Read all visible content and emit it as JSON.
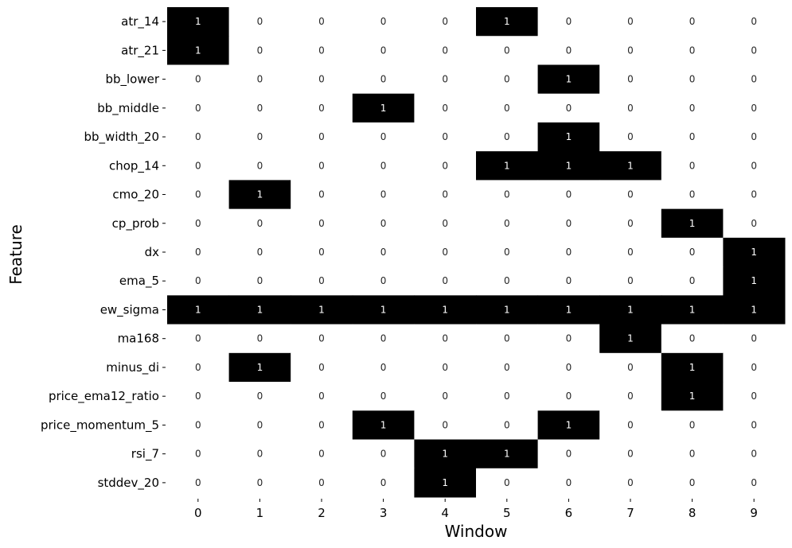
{
  "chart_data": {
    "type": "heatmap",
    "title": "",
    "xlabel": "Window",
    "ylabel": "Feature",
    "x_categories": [
      "0",
      "1",
      "2",
      "3",
      "4",
      "5",
      "6",
      "7",
      "8",
      "9"
    ],
    "y_categories": [
      "atr_14",
      "atr_21",
      "bb_lower",
      "bb_middle",
      "bb_width_20",
      "chop_14",
      "cmo_20",
      "cp_prob",
      "dx",
      "ema_5",
      "ew_sigma",
      "ma168",
      "minus_di",
      "price_ema12_ratio",
      "price_momentum_5",
      "rsi_7",
      "stddev_20"
    ],
    "values": [
      [
        1,
        0,
        0,
        0,
        0,
        1,
        0,
        0,
        0,
        0
      ],
      [
        1,
        0,
        0,
        0,
        0,
        0,
        0,
        0,
        0,
        0
      ],
      [
        0,
        0,
        0,
        0,
        0,
        0,
        1,
        0,
        0,
        0
      ],
      [
        0,
        0,
        0,
        1,
        0,
        0,
        0,
        0,
        0,
        0
      ],
      [
        0,
        0,
        0,
        0,
        0,
        0,
        1,
        0,
        0,
        0
      ],
      [
        0,
        0,
        0,
        0,
        0,
        1,
        1,
        1,
        0,
        0
      ],
      [
        0,
        1,
        0,
        0,
        0,
        0,
        0,
        0,
        0,
        0
      ],
      [
        0,
        0,
        0,
        0,
        0,
        0,
        0,
        0,
        1,
        0
      ],
      [
        0,
        0,
        0,
        0,
        0,
        0,
        0,
        0,
        0,
        1
      ],
      [
        0,
        0,
        0,
        0,
        0,
        0,
        0,
        0,
        0,
        1
      ],
      [
        1,
        1,
        1,
        1,
        1,
        1,
        1,
        1,
        1,
        1
      ],
      [
        0,
        0,
        0,
        0,
        0,
        0,
        0,
        1,
        0,
        0
      ],
      [
        0,
        1,
        0,
        0,
        0,
        0,
        0,
        0,
        1,
        0
      ],
      [
        0,
        0,
        0,
        0,
        0,
        0,
        0,
        0,
        1,
        0
      ],
      [
        0,
        0,
        0,
        1,
        0,
        0,
        1,
        0,
        0,
        0
      ],
      [
        0,
        0,
        0,
        0,
        1,
        1,
        0,
        0,
        0,
        0
      ],
      [
        0,
        0,
        0,
        0,
        1,
        0,
        0,
        0,
        0,
        0
      ]
    ],
    "value_range": [
      0,
      1
    ],
    "colormap": {
      "0": "#ffffff",
      "1": "#000000"
    },
    "annotations": true,
    "grid": false,
    "colorbar": false
  }
}
